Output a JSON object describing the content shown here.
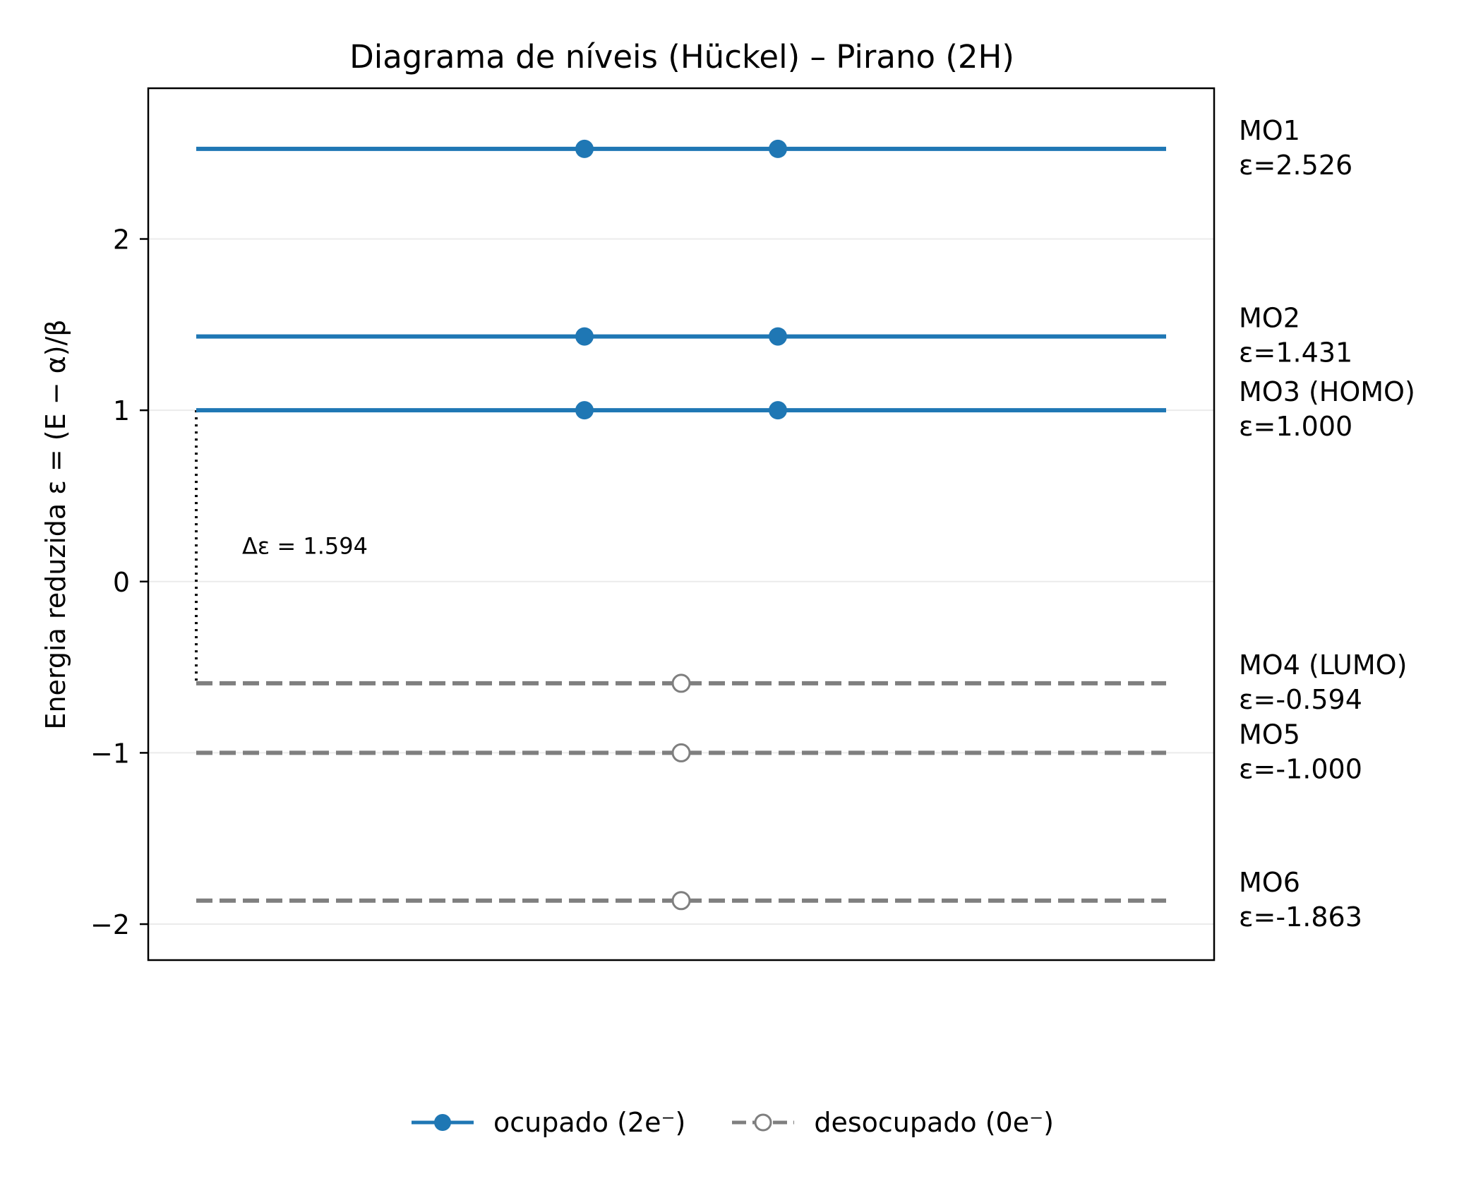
{
  "chart_data": {
    "type": "line",
    "title": "Diagrama de níveis (Hückel) – Pirano (2H)",
    "xlabel": "",
    "ylabel": "Energia reduzida ε = (E − α)/β",
    "ylim": [
      -2.21,
      2.88
    ],
    "yticks": [
      2,
      1,
      0,
      -1,
      -2
    ],
    "ytick_labels": [
      "2",
      "1",
      "0",
      "−1",
      "−2"
    ],
    "grid": "horizontal",
    "legend_position": "bottom-center",
    "colors": {
      "occupied": "#1f77b4",
      "unoccupied": "#7f7f7f",
      "gap": "#000000"
    },
    "levels": [
      {
        "name": "MO1",
        "label_line1": "MO1",
        "label_line2": "ε=2.526",
        "energy": 2.526,
        "occupied": true,
        "electrons": 2
      },
      {
        "name": "MO2",
        "label_line1": "MO2",
        "label_line2": "ε=1.431",
        "energy": 1.431,
        "occupied": true,
        "electrons": 2
      },
      {
        "name": "MO3",
        "label_line1": "MO3 (HOMO)",
        "label_line2": "ε=1.000",
        "energy": 1.0,
        "occupied": true,
        "electrons": 2
      },
      {
        "name": "MO4",
        "label_line1": "MO4 (LUMO)",
        "label_line2": "ε=-0.594",
        "energy": -0.594,
        "occupied": false,
        "electrons": 0
      },
      {
        "name": "MO5",
        "label_line1": "MO5",
        "label_line2": "ε=-1.000",
        "energy": -1.0,
        "occupied": false,
        "electrons": 0
      },
      {
        "name": "MO6",
        "label_line1": "MO6",
        "label_line2": "ε=-1.863",
        "energy": -1.863,
        "occupied": false,
        "electrons": 0
      }
    ],
    "gap": {
      "from": 1.0,
      "to": -0.594,
      "label": "Δε = 1.594"
    },
    "legend": [
      {
        "label": "ocupado (2e⁻)",
        "style": "solid-filled-marker"
      },
      {
        "label": "desocupado (0e⁻)",
        "style": "dashed-open-marker"
      }
    ]
  }
}
